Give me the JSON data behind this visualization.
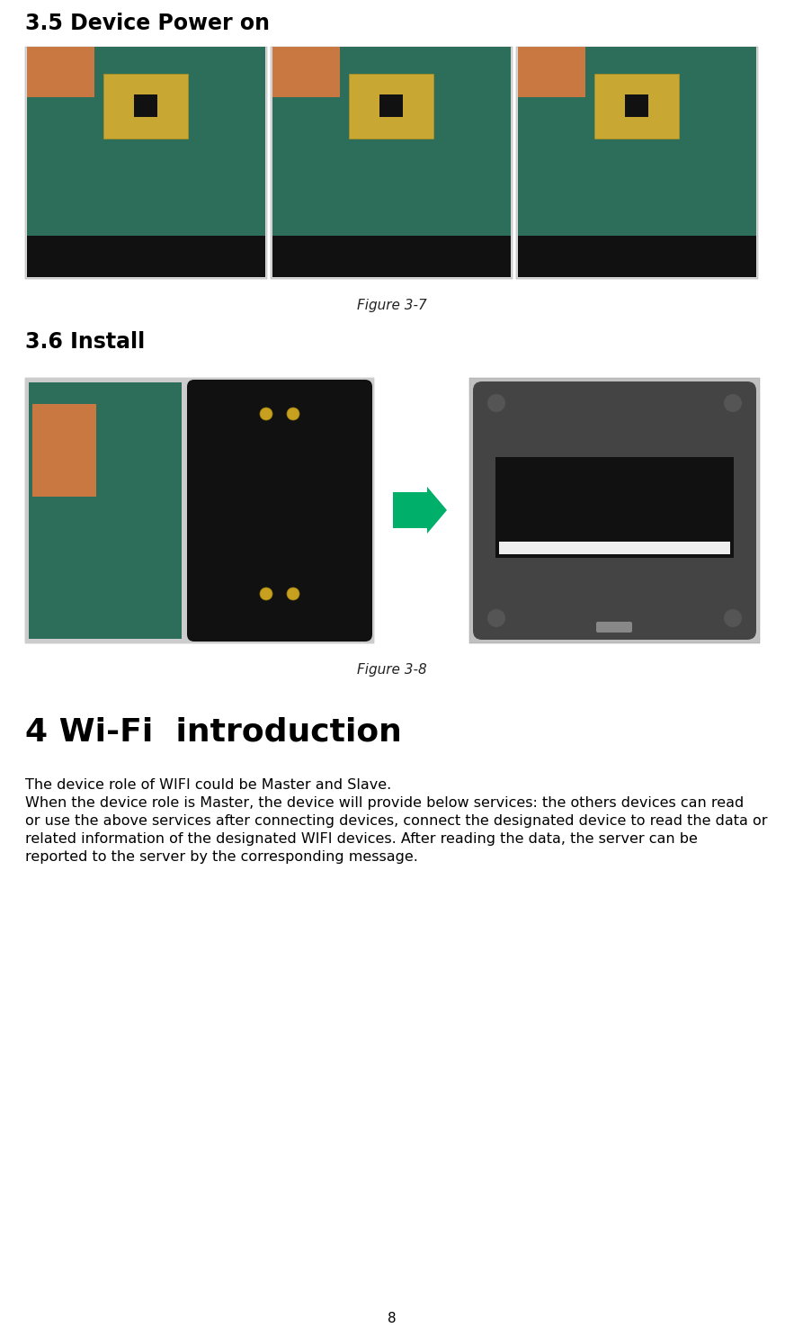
{
  "page_bg": "#ffffff",
  "title1": "3.5 Device Power on",
  "title1_fontsize": 17,
  "figure1_caption": "Figure 3-7",
  "figure1_caption_fontsize": 11,
  "title2": "3.6 Install",
  "title2_fontsize": 17,
  "figure2_caption": "Figure 3-8",
  "figure2_caption_fontsize": 11,
  "title3": "4 Wi-Fi  introduction",
  "title3_fontsize": 26,
  "body_text_line1": "The device role of WIFI could be Master and Slave.",
  "body_text_line2": "When the device role is Master, the device will provide below services: the others devices can read",
  "body_text_line3": "or use the above services after connecting devices, connect the designated device to read the data or",
  "body_text_line4": "related information of the designated WIFI devices. After reading the data, the server can be",
  "body_text_line5": "reported to the server by the corresponding message.",
  "body_fontsize": 11.5,
  "page_number": "8",
  "page_number_fontsize": 11,
  "img_bg_light": "#d8d8d8",
  "img_bg_dark": "#a0a0a0",
  "img_circuit": "#2d6e5a",
  "img_black": "#1a1a1a",
  "img_device_gray": "#888888",
  "img_device_dark": "#555555",
  "img_device_darker": "#3a3a3a",
  "arrow_color": "#00b06a",
  "caption_color": "#222222",
  "title_color": "#000000",
  "text_color": "#000000"
}
